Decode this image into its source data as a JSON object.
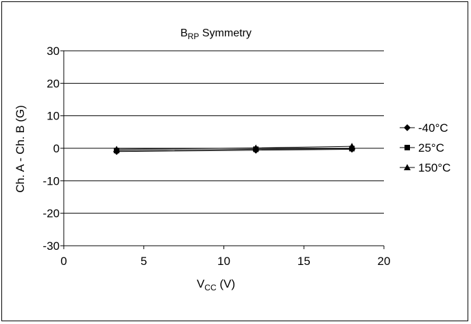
{
  "chart_data": {
    "type": "line",
    "title": {
      "main": "B",
      "sub": "RP",
      "rest": " Symmetry"
    },
    "xlabel": {
      "main": "V",
      "sub": "CC",
      "rest": " (V)"
    },
    "ylabel": "Ch. A - Ch. B (G)",
    "xlim": [
      0,
      20
    ],
    "ylim": [
      -30,
      30
    ],
    "xticks": [
      0,
      5,
      10,
      15,
      20
    ],
    "yticks": [
      -30,
      -20,
      -10,
      0,
      10,
      20,
      30
    ],
    "grid": {
      "y": true,
      "x": false
    },
    "legend_position": "right",
    "x": [
      3.3,
      12,
      18
    ],
    "series": [
      {
        "name": "-40°C",
        "marker": "diamond",
        "values": [
          -1.0,
          -0.6,
          -0.3
        ]
      },
      {
        "name": "25°C",
        "marker": "square",
        "values": [
          -0.7,
          -0.3,
          -0.1
        ]
      },
      {
        "name": "150°C",
        "marker": "triangle",
        "values": [
          -0.3,
          0.1,
          0.6
        ]
      }
    ],
    "line_color": "#000000"
  }
}
